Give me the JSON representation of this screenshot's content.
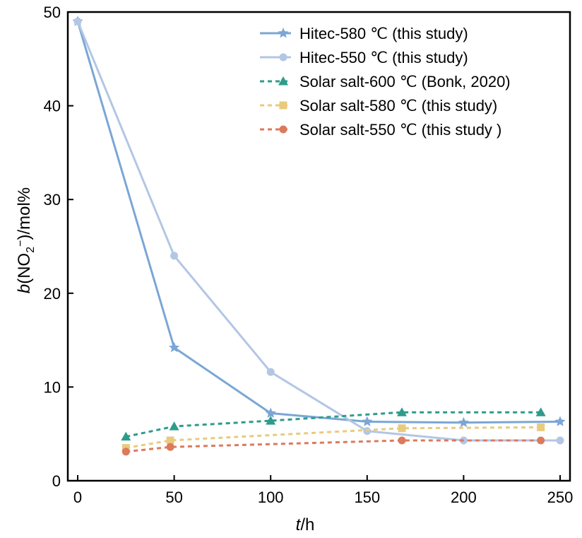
{
  "chart_data": {
    "type": "line",
    "xlabel_italic": "t",
    "xlabel_unit": "/h",
    "ylabel_italic": "b",
    "ylabel_species": "(NO",
    "ylabel_sub": "2",
    "ylabel_sup": "−",
    "ylabel_rest": ")/mol%",
    "xlim": [
      0,
      250
    ],
    "ylim": [
      0,
      50
    ],
    "xticks": [
      0,
      50,
      100,
      150,
      200,
      250
    ],
    "yticks": [
      0,
      10,
      20,
      30,
      40,
      50
    ],
    "grid": false,
    "legend_position": "top-right",
    "series": [
      {
        "name": "Hitec-580 ℃ (this study)",
        "color": "#7BA6D5",
        "marker": "star",
        "dashed": false,
        "x": [
          0,
          50,
          100,
          150,
          200,
          250
        ],
        "y": [
          49,
          14.2,
          7.2,
          6.3,
          6.2,
          6.3
        ]
      },
      {
        "name": "Hitec-550 ℃ (this study)",
        "color": "#B3C6E5",
        "marker": "circle",
        "dashed": false,
        "x": [
          0,
          50,
          100,
          150,
          200,
          250
        ],
        "y": [
          49,
          24,
          11.6,
          5.3,
          4.3,
          4.3
        ]
      },
      {
        "name": "Solar salt-600 ℃ (Bonk, 2020)",
        "color": "#2E9C8A",
        "marker": "triangle",
        "dashed": true,
        "x": [
          25,
          50,
          100,
          168,
          240
        ],
        "y": [
          4.7,
          5.8,
          6.4,
          7.3,
          7.3
        ]
      },
      {
        "name": "Solar salt-580 ℃ (this study)",
        "color": "#E8CB7E",
        "marker": "square",
        "dashed": true,
        "x": [
          25,
          48,
          168,
          240
        ],
        "y": [
          3.5,
          4.3,
          5.6,
          5.7
        ]
      },
      {
        "name": "Solar salt-550 ℃ (this study  )",
        "color": "#DC7A5C",
        "marker": "circle",
        "dashed": true,
        "x": [
          25,
          48,
          168,
          240
        ],
        "y": [
          3.1,
          3.6,
          4.3,
          4.3
        ]
      }
    ]
  }
}
